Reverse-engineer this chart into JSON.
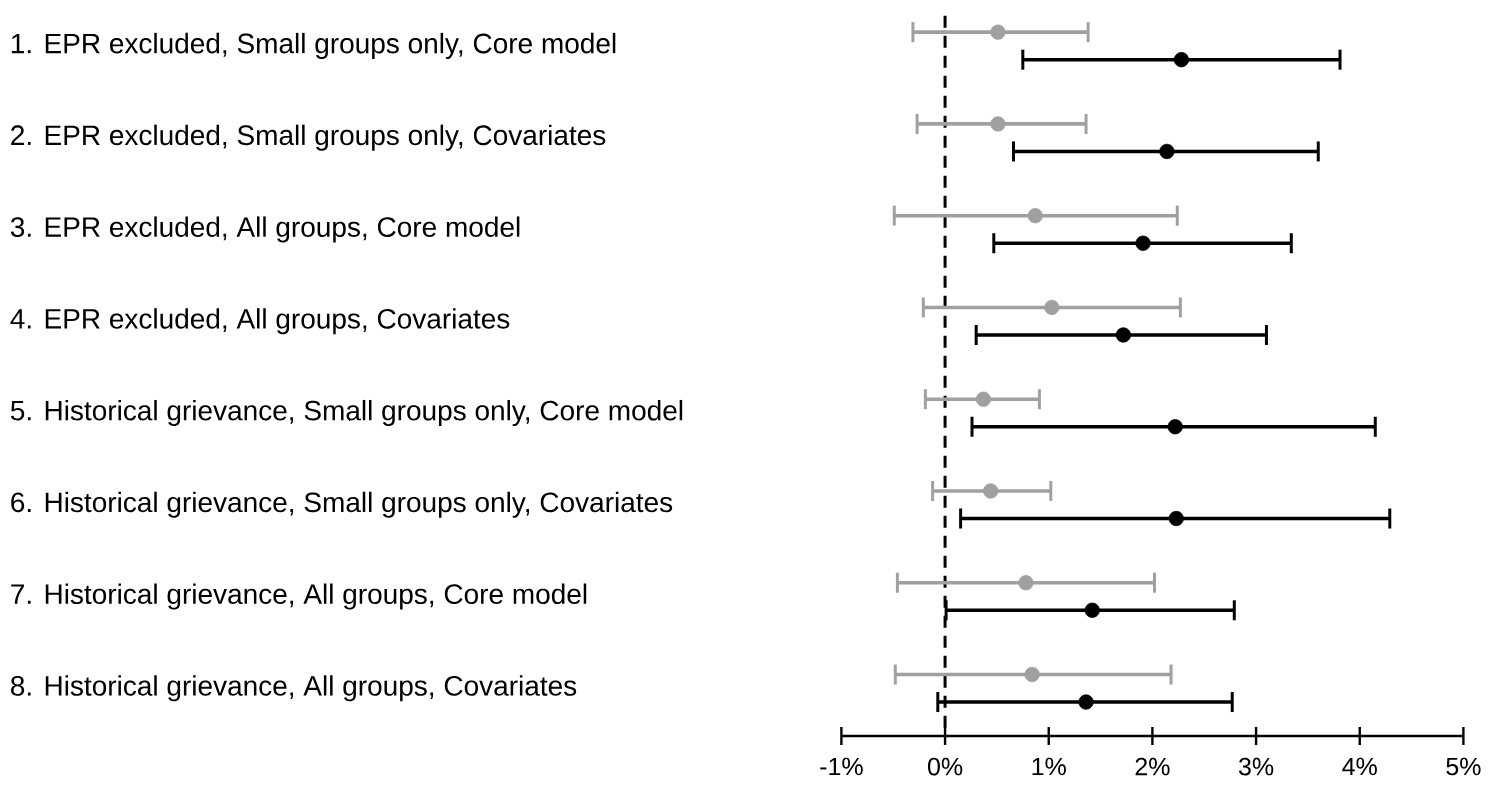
{
  "chart_data": {
    "type": "scatter",
    "orientation": "horizontal",
    "categories": [
      "1. EPR excluded, Small groups only, Core model",
      "2. EPR excluded, Small groups only, Covariates",
      "3. EPR excluded, All groups, Core model",
      "4. EPR excluded, All groups, Covariates",
      "5. Historical grievance, Small groups only, Core model",
      "6. Historical grievance, Small groups only, Covariates",
      "7. Historical grievance, All groups, Core model",
      "8. Historical grievance, All groups, Covariates"
    ],
    "series": [
      {
        "color": "#a0a0a0",
        "values": [
          0.51,
          0.51,
          0.87,
          1.03,
          0.37,
          0.44,
          0.78,
          0.84
        ],
        "errors": [
          [
            -0.31,
            1.38
          ],
          [
            -0.27,
            1.36
          ],
          [
            -0.49,
            2.24
          ],
          [
            -0.21,
            2.27
          ],
          [
            -0.19,
            0.91
          ],
          [
            -0.12,
            1.02
          ],
          [
            -0.46,
            2.02
          ],
          [
            -0.48,
            2.18
          ]
        ]
      },
      {
        "color": "#000000",
        "values": [
          2.28,
          2.14,
          1.91,
          1.72,
          2.22,
          2.23,
          1.42,
          1.36
        ],
        "errors": [
          [
            0.75,
            3.81
          ],
          [
            0.66,
            3.6
          ],
          [
            0.47,
            3.34
          ],
          [
            0.3,
            3.1
          ],
          [
            0.26,
            4.15
          ],
          [
            0.15,
            4.29
          ],
          [
            0.01,
            2.79
          ],
          [
            -0.07,
            2.77
          ]
        ]
      }
    ],
    "xlim": [
      -1,
      5
    ],
    "xticks": [
      {
        "value": -1,
        "label": "-1%"
      },
      {
        "value": 0,
        "label": "0%"
      },
      {
        "value": 1,
        "label": "1%"
      },
      {
        "value": 2,
        "label": "2%"
      },
      {
        "value": 3,
        "label": "3%"
      },
      {
        "value": 4,
        "label": "4%"
      },
      {
        "value": 5,
        "label": "5%"
      }
    ],
    "ref_lines": [
      {
        "axis": "x",
        "value": 0,
        "color": "#000000",
        "line_style": "dashed"
      }
    ]
  }
}
